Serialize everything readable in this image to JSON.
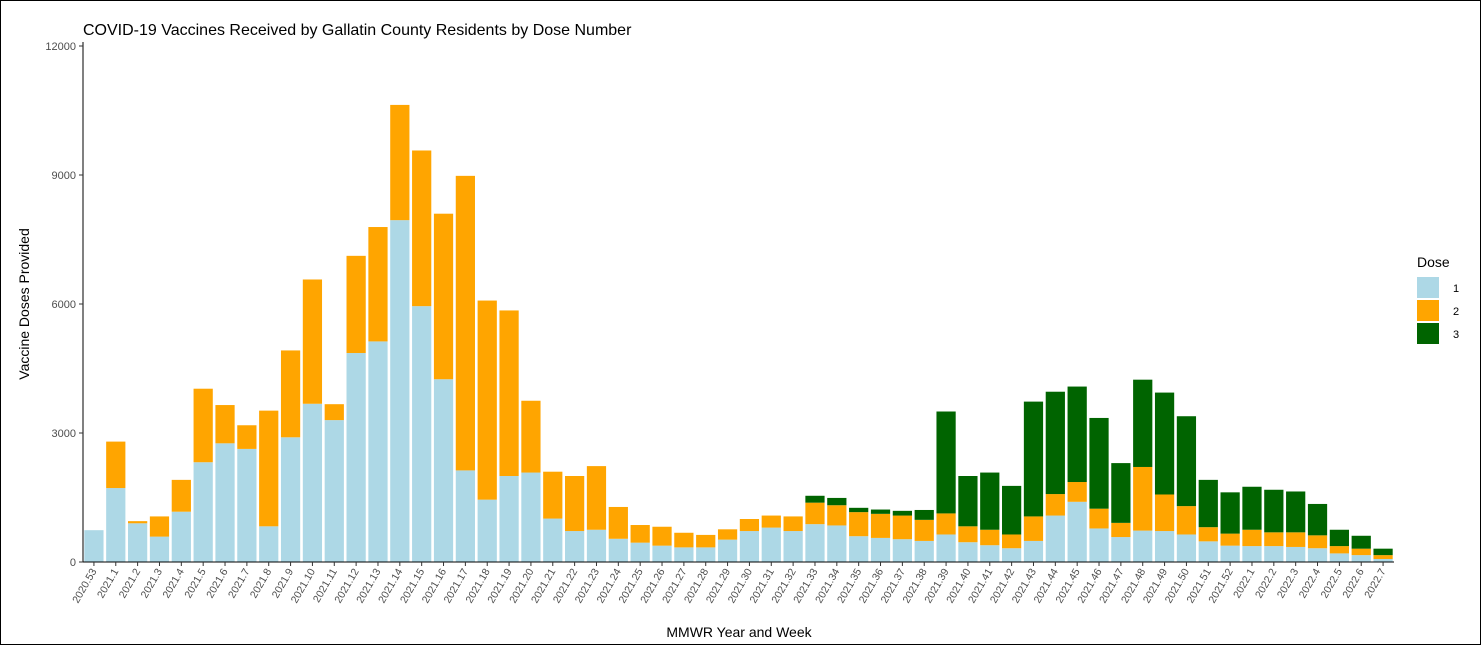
{
  "chart_data": {
    "type": "bar",
    "stacked": true,
    "title": "COVID-19 Vaccines Received by Gallatin County Residents by Dose Number",
    "xlabel": "MMWR Year and Week",
    "ylabel": "Vaccine Doses Provided",
    "ylim": [
      0,
      12000
    ],
    "yticks": [
      0,
      3000,
      6000,
      9000,
      12000
    ],
    "grid": false,
    "legend": {
      "title": "Dose",
      "position": "right"
    },
    "categories": [
      "2020.53",
      "2021.1",
      "2021.2",
      "2021.3",
      "2021.4",
      "2021.5",
      "2021.6",
      "2021.7",
      "2021.8",
      "2021.9",
      "2021.10",
      "2021.11",
      "2021.12",
      "2021.13",
      "2021.14",
      "2021.15",
      "2021.16",
      "2021.17",
      "2021.18",
      "2021.19",
      "2021.20",
      "2021.21",
      "2021.22",
      "2021.23",
      "2021.24",
      "2021.25",
      "2021.26",
      "2021.27",
      "2021.28",
      "2021.29",
      "2021.30",
      "2021.31",
      "2021.32",
      "2021.33",
      "2021.34",
      "2021.35",
      "2021.36",
      "2021.37",
      "2021.38",
      "2021.39",
      "2021.40",
      "2021.41",
      "2021.42",
      "2021.43",
      "2021.44",
      "2021.45",
      "2021.46",
      "2021.47",
      "2021.48",
      "2021.49",
      "2021.50",
      "2021.51",
      "2021.52",
      "2022.1",
      "2022.2",
      "2022.3",
      "2022.4",
      "2022.5",
      "2022.6",
      "2022.7"
    ],
    "series": [
      {
        "name": "1",
        "color": "#add8e6",
        "values": [
          740,
          1720,
          900,
          590,
          1170,
          2320,
          2760,
          2630,
          830,
          2900,
          3680,
          3300,
          4860,
          5130,
          7950,
          5950,
          4250,
          2130,
          1450,
          2000,
          2080,
          1010,
          720,
          750,
          540,
          450,
          380,
          340,
          340,
          520,
          720,
          800,
          720,
          880,
          850,
          600,
          560,
          530,
          490,
          640,
          460,
          390,
          320,
          490,
          1080,
          1400,
          780,
          580,
          730,
          720,
          640,
          480,
          380,
          370,
          370,
          350,
          320,
          200,
          160,
          70
        ]
      },
      {
        "name": "2",
        "color": "#ffa500",
        "values": [
          0,
          1080,
          50,
          470,
          740,
          1710,
          890,
          550,
          2690,
          2020,
          2890,
          370,
          2260,
          2660,
          2680,
          3620,
          3850,
          6850,
          4630,
          3850,
          1670,
          1090,
          1280,
          1480,
          740,
          410,
          440,
          340,
          290,
          240,
          280,
          280,
          340,
          500,
          470,
          560,
          560,
          550,
          490,
          490,
          370,
          360,
          320,
          570,
          500,
          460,
          460,
          330,
          1480,
          850,
          660,
          330,
          280,
          380,
          320,
          340,
          300,
          170,
          150,
          90
        ]
      },
      {
        "name": "3",
        "color": "#006400",
        "values": [
          0,
          0,
          0,
          0,
          0,
          0,
          0,
          0,
          0,
          0,
          0,
          0,
          0,
          0,
          0,
          0,
          0,
          0,
          0,
          0,
          0,
          0,
          0,
          0,
          0,
          0,
          0,
          0,
          0,
          0,
          0,
          0,
          0,
          160,
          170,
          100,
          100,
          110,
          230,
          2370,
          1170,
          1330,
          1130,
          2670,
          2380,
          2220,
          2110,
          1390,
          2030,
          2370,
          2090,
          1100,
          960,
          1000,
          990,
          950,
          730,
          380,
          300,
          150
        ]
      }
    ]
  }
}
